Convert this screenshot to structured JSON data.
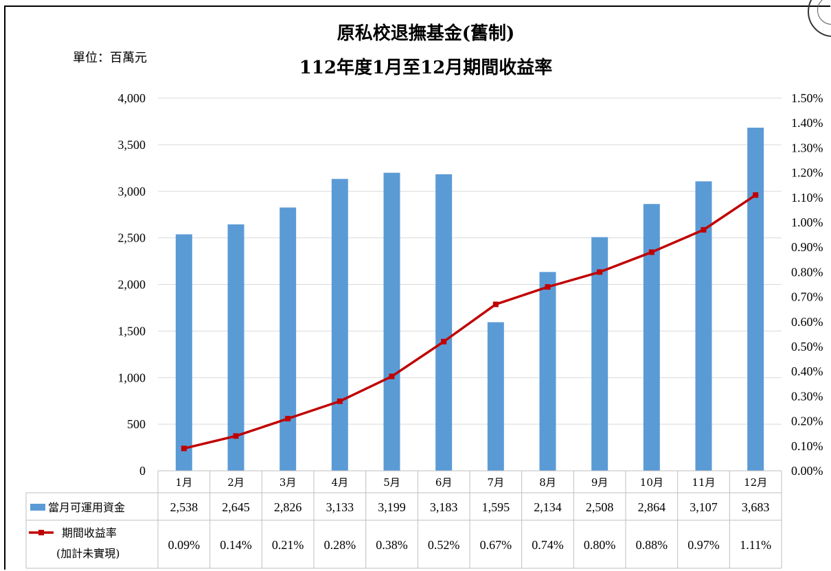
{
  "header": {
    "unit": "單位：百萬元",
    "title_line1": "原私校退撫基金(舊制)",
    "title_line2": "112年度1月至12月期間收益率"
  },
  "colors": {
    "bar": "#5B9BD5",
    "line": "#C00000",
    "grid": "#D9D9D9"
  },
  "chart_data": {
    "type": "bar",
    "categories": [
      "1月",
      "2月",
      "3月",
      "4月",
      "5月",
      "6月",
      "7月",
      "8月",
      "9月",
      "10月",
      "11月",
      "12月"
    ],
    "series": [
      {
        "name": "當月可運用資金",
        "type": "bar",
        "axis": "left",
        "values": [
          2538,
          2645,
          2826,
          3133,
          3199,
          3183,
          1595,
          2134,
          2508,
          2864,
          3107,
          3683
        ],
        "labels": [
          "2,538",
          "2,645",
          "2,826",
          "3,133",
          "3,199",
          "3,183",
          "1,595",
          "2,134",
          "2,508",
          "2,864",
          "3,107",
          "3,683"
        ]
      },
      {
        "name": "期間收益率",
        "name_sub": "(加計未實現)",
        "type": "line",
        "axis": "right",
        "values": [
          0.09,
          0.14,
          0.21,
          0.28,
          0.38,
          0.52,
          0.67,
          0.74,
          0.8,
          0.88,
          0.97,
          1.11
        ],
        "labels": [
          "0.09%",
          "0.14%",
          "0.21%",
          "0.28%",
          "0.38%",
          "0.52%",
          "0.67%",
          "0.74%",
          "0.80%",
          "0.88%",
          "0.97%",
          "1.11%"
        ]
      }
    ],
    "y_left": {
      "min": 0,
      "max": 4000,
      "ticks": [
        "0",
        "500",
        "1,000",
        "1,500",
        "2,000",
        "2,500",
        "3,000",
        "3,500",
        "4,000"
      ]
    },
    "y_right": {
      "min": 0,
      "max": 1.5,
      "ticks": [
        "0.00%",
        "0.10%",
        "0.20%",
        "0.30%",
        "0.40%",
        "0.50%",
        "0.60%",
        "0.70%",
        "0.80%",
        "0.90%",
        "1.00%",
        "1.10%",
        "1.20%",
        "1.30%",
        "1.40%",
        "1.50%"
      ]
    },
    "grid": true,
    "legend": "data-table"
  }
}
